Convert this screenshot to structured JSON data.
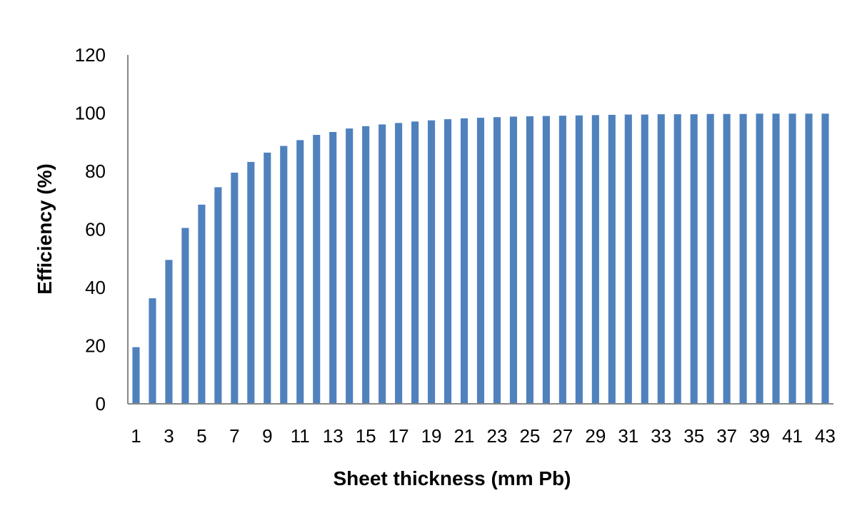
{
  "chart_data": {
    "type": "bar",
    "xlabel": "Sheet thickness (mm Pb)",
    "ylabel": "Efficiency (%)",
    "ylim": [
      0,
      120
    ],
    "yticks": [
      0,
      20,
      40,
      60,
      80,
      100,
      120
    ],
    "grid": false,
    "bar_color": "#4f81bd",
    "categories": [
      1,
      2,
      3,
      4,
      5,
      6,
      7,
      8,
      9,
      10,
      11,
      12,
      13,
      14,
      15,
      16,
      17,
      18,
      19,
      20,
      21,
      22,
      23,
      24,
      25,
      26,
      27,
      28,
      29,
      30,
      31,
      32,
      33,
      34,
      35,
      36,
      37,
      38,
      39,
      40,
      41,
      42,
      43
    ],
    "xtick_labels": [
      "1",
      "3",
      "5",
      "7",
      "9",
      "11",
      "13",
      "15",
      "17",
      "19",
      "21",
      "23",
      "25",
      "27",
      "29",
      "31",
      "33",
      "35",
      "37",
      "39",
      "41",
      "43"
    ],
    "values": [
      19.5,
      36.3,
      49.5,
      60.5,
      68.5,
      74.5,
      79.5,
      83.2,
      86.4,
      88.7,
      90.7,
      92.5,
      93.5,
      94.7,
      95.5,
      96.1,
      96.6,
      97.1,
      97.5,
      97.9,
      98.2,
      98.4,
      98.6,
      98.8,
      98.9,
      99.0,
      99.1,
      99.2,
      99.3,
      99.4,
      99.5,
      99.5,
      99.6,
      99.6,
      99.6,
      99.7,
      99.7,
      99.7,
      99.8,
      99.8,
      99.8,
      99.8,
      99.8
    ]
  }
}
